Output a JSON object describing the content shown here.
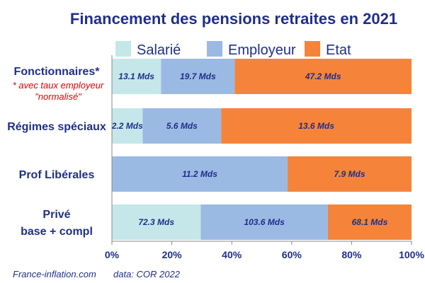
{
  "chart_data": {
    "type": "bar",
    "orientation": "horizontal",
    "stacked": true,
    "normalized": true,
    "title": "Financement des pensions retraites en 2021",
    "categories": [
      "Fonctionnaires*",
      "Régimes spéciaux",
      "Prof Libérales",
      "Privé\nbase + compl"
    ],
    "category_notes": {
      "Fonctionnaires*": [
        "* avec taux employeur",
        "\"normalisé\""
      ]
    },
    "series": [
      {
        "name": "Salarié",
        "color": "#c5e7ea",
        "values": [
          13.1,
          2.2,
          0,
          72.3
        ],
        "labels": [
          "13.1 Mds",
          "2.2 Mds",
          "",
          "72.3 Mds"
        ]
      },
      {
        "name": "Employeur",
        "color": "#9bbae3",
        "values": [
          19.7,
          5.6,
          11.2,
          103.6
        ],
        "labels": [
          "19.7 Mds",
          "5.6 Mds",
          "11.2 Mds",
          "103.6 Mds"
        ]
      },
      {
        "name": "Etat",
        "color": "#f5843a",
        "values": [
          47.2,
          13.6,
          7.9,
          68.1
        ],
        "labels": [
          "47.2 Mds",
          "13.6 Mds",
          "7.9 Mds",
          "68.1 Mds"
        ]
      }
    ],
    "xlim": [
      0,
      100
    ],
    "xticks": [
      0,
      20,
      40,
      60,
      80,
      100
    ],
    "xtick_labels": [
      "0%",
      "20%",
      "40%",
      "60%",
      "80%",
      "100%"
    ],
    "legend_position": "top",
    "grid": false
  },
  "footer": {
    "source": "France-inflation.com",
    "data": "data: COR 2022"
  },
  "colors": {
    "text": "#1f2f8a",
    "note": "#e00000",
    "axis": "#888888"
  }
}
